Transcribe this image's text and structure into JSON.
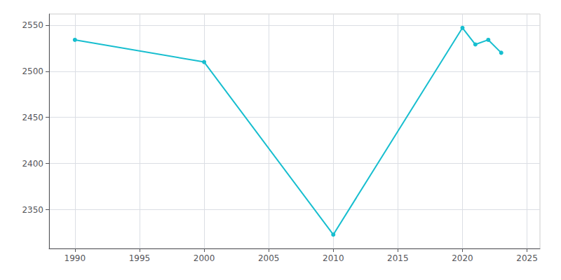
{
  "chart_data": {
    "type": "line",
    "x": [
      1990,
      2000,
      2010,
      2020,
      2021,
      2022,
      2023
    ],
    "values": [
      2534,
      2510,
      2323,
      2547,
      2529,
      2534,
      2520
    ],
    "color": "#17becf",
    "marker": "circle",
    "xlim": [
      1988,
      2026
    ],
    "ylim": [
      2308,
      2562
    ],
    "xticks": [
      1990,
      1995,
      2000,
      2005,
      2010,
      2015,
      2020,
      2025
    ],
    "yticks": [
      2350,
      2400,
      2450,
      2500,
      2550
    ],
    "grid": true
  }
}
